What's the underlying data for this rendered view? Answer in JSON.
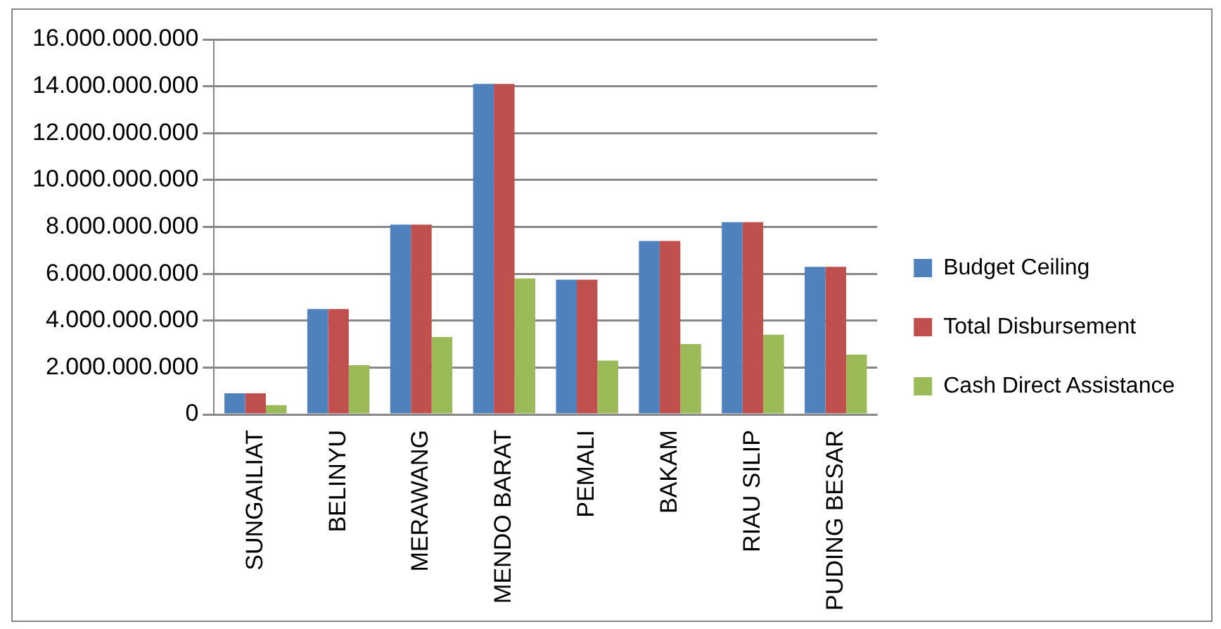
{
  "chart_data": {
    "type": "bar",
    "categories": [
      "SUNGAILIAT",
      "BELINYU",
      "MERAWANG",
      "MENDO BARAT",
      "PEMALI",
      "BAKAM",
      "RIAU SILIP",
      "PUDING BESAR"
    ],
    "series": [
      {
        "name": "Budget Ceiling",
        "color": "#4f81bd",
        "values": [
          900000000,
          4500000000,
          8100000000,
          14100000000,
          5750000000,
          7400000000,
          8200000000,
          6300000000
        ]
      },
      {
        "name": "Total Disbursement",
        "color": "#c0504d",
        "values": [
          900000000,
          4500000000,
          8100000000,
          14100000000,
          5750000000,
          7400000000,
          8200000000,
          6300000000
        ]
      },
      {
        "name": "Cash Direct Assistance",
        "color": "#9bbb59",
        "values": [
          400000000,
          2100000000,
          3300000000,
          5800000000,
          2300000000,
          3000000000,
          3400000000,
          2550000000
        ]
      }
    ],
    "ylim": [
      0,
      16000000000
    ],
    "yticks": [
      0,
      {
        "value": 2000000000,
        "label": "2.000.000.000"
      },
      {
        "value": 4000000000,
        "label": "4.000.000.000"
      },
      {
        "value": 6000000000,
        "label": "6.000.000.000"
      },
      {
        "value": 8000000000,
        "label": "8.000.000.000"
      },
      {
        "value": 10000000000,
        "label": "10.000.000.000"
      },
      {
        "value": 12000000000,
        "label": "12.000.000.000"
      },
      {
        "value": 14000000000,
        "label": "14.000.000.000"
      },
      {
        "value": 16000000000,
        "label": "16.000.000.000"
      }
    ],
    "grid": "y",
    "legend": "right"
  }
}
